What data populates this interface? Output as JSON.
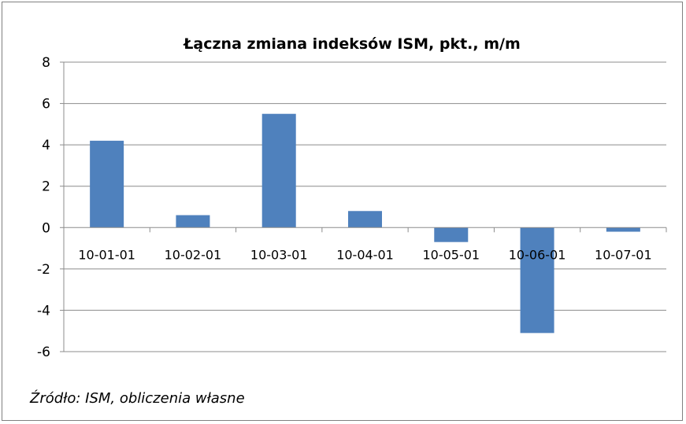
{
  "chart_data": {
    "type": "bar",
    "title": "Łączna zmiana indeksów ISM, pkt., m/m",
    "xlabel": "",
    "ylabel": "",
    "categories": [
      "10-01-01",
      "10-02-01",
      "10-03-01",
      "10-04-01",
      "10-05-01",
      "10-06-01",
      "10-07-01"
    ],
    "values": [
      4.2,
      0.6,
      5.5,
      0.8,
      -0.7,
      -5.1,
      -0.2
    ],
    "ylim": [
      -6,
      8
    ],
    "yticks": [
      "8",
      "6",
      "4",
      "2",
      "0",
      "-2",
      "-4",
      "-6"
    ],
    "grid": true,
    "legend": "none",
    "bar_color": "#4F81BD",
    "source": "Źródło: ISM, obliczenia własne"
  }
}
